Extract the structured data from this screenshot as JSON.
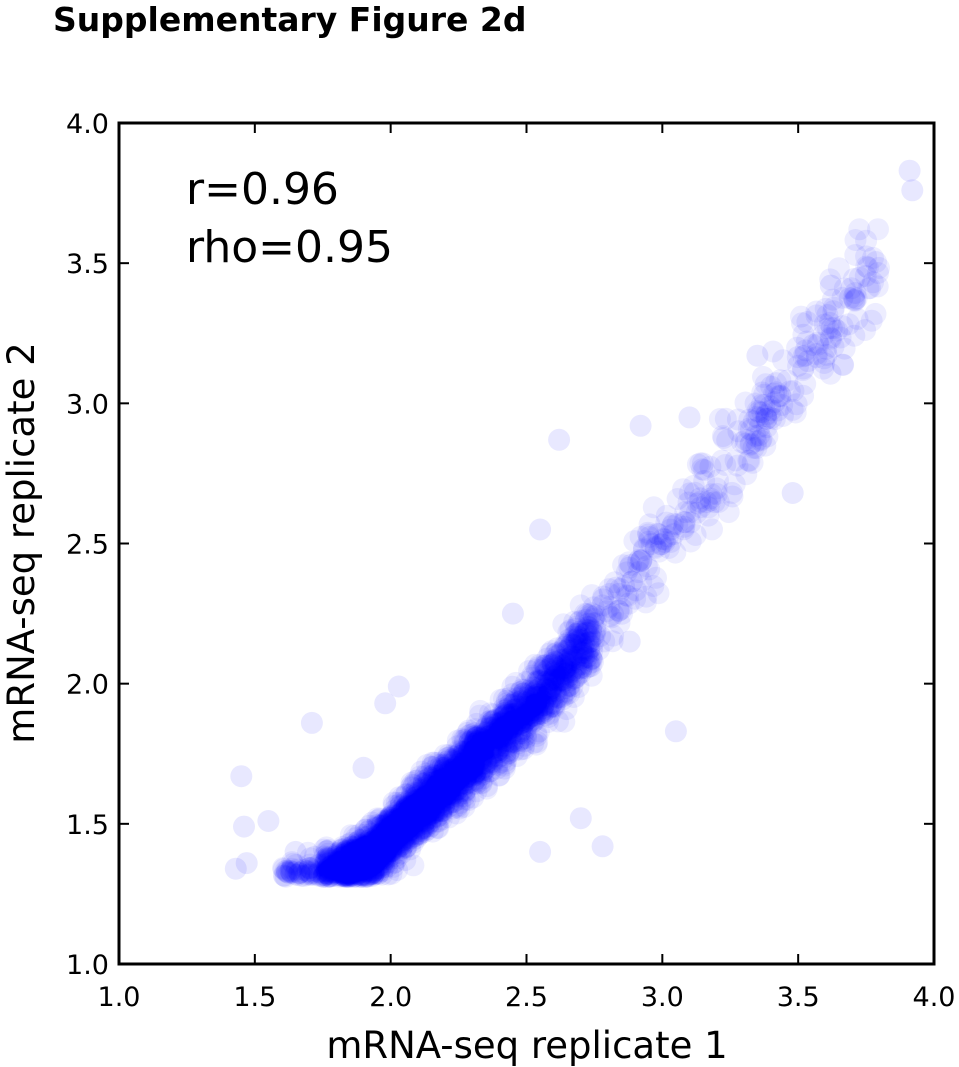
{
  "figure_title": "Supplementary Figure 2d",
  "chart_data": {
    "type": "scatter",
    "title": "",
    "xlabel": "mRNA-seq replicate 1",
    "ylabel": "mRNA-seq replicate 2",
    "xlim": [
      1.0,
      4.0
    ],
    "ylim": [
      1.0,
      4.0
    ],
    "xticks": [
      "1.0",
      "1.5",
      "2.0",
      "2.5",
      "3.0",
      "3.5",
      "4.0"
    ],
    "yticks": [
      "1.0",
      "1.5",
      "2.0",
      "2.5",
      "3.0",
      "3.5",
      "4.0"
    ],
    "grid": false,
    "legend": "none",
    "annotations": [
      "r=0.96",
      "rho=0.95"
    ],
    "point_color": "#0000ff",
    "point_alpha": 0.07,
    "points_note_unused": "",
    "trend": {
      "x": [
        1.6,
        1.75,
        1.85,
        1.95,
        2.05,
        2.2,
        2.35,
        2.5,
        2.65,
        2.8,
        2.95,
        3.1,
        3.25,
        3.4,
        3.55,
        3.7,
        3.8
      ],
      "y": [
        1.31,
        1.33,
        1.35,
        1.4,
        1.5,
        1.63,
        1.76,
        1.9,
        2.06,
        2.25,
        2.45,
        2.63,
        2.8,
        3.0,
        3.18,
        3.36,
        3.48
      ]
    },
    "outliers": {
      "x": [
        1.45,
        1.46,
        1.47,
        1.43,
        1.55,
        1.71,
        1.98,
        2.03,
        2.62,
        2.92,
        3.05,
        2.55,
        2.7,
        2.78,
        2.55,
        2.88,
        3.48,
        3.91,
        3.92,
        3.62,
        3.35,
        3.1,
        1.65,
        1.9,
        2.45
      ],
      "y": [
        1.67,
        1.49,
        1.36,
        1.34,
        1.51,
        1.86,
        1.93,
        1.99,
        2.87,
        2.92,
        1.83,
        1.4,
        1.52,
        1.42,
        2.55,
        2.15,
        2.68,
        3.83,
        3.76,
        3.42,
        3.17,
        2.95,
        1.4,
        1.7,
        2.25
      ]
    }
  }
}
